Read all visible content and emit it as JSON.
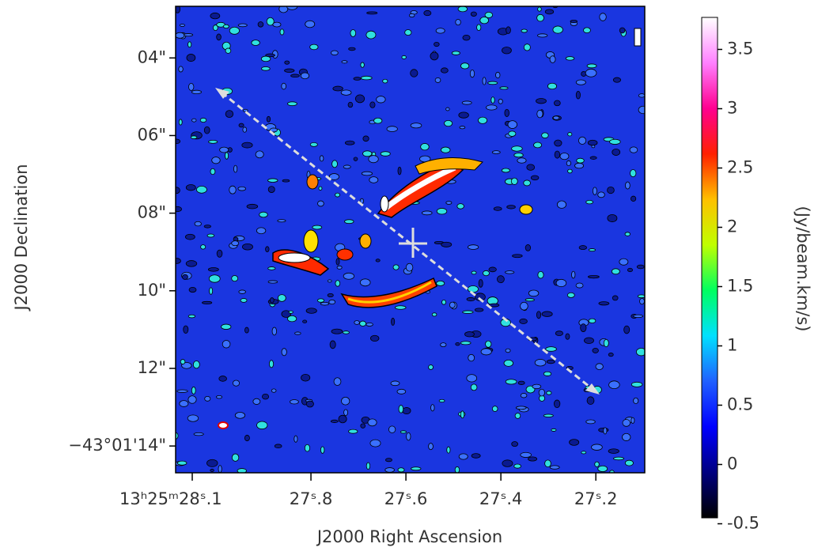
{
  "chart_data": {
    "type": "image",
    "xlabel": "J2000 Right Ascension",
    "ylabel": "J2000 Declination",
    "xlim": [
      28.085,
      27.097
    ],
    "xticks": [
      {
        "value": 28.05,
        "label": "13ʰ25ᵐ28ˢ.1"
      },
      {
        "value": 27.8,
        "label": "27ˢ.8"
      },
      {
        "value": 27.6,
        "label": "27ˢ.6"
      },
      {
        "value": 27.4,
        "label": "27ˢ.4"
      },
      {
        "value": 27.2,
        "label": "27ˢ.2"
      }
    ],
    "ylim": [
      14.69,
      2.67
    ],
    "yticks": [
      {
        "value": 4,
        "label": "04\""
      },
      {
        "value": 6,
        "label": "06\""
      },
      {
        "value": 8,
        "label": "08\""
      },
      {
        "value": 10,
        "label": "10\""
      },
      {
        "value": 12,
        "label": "12\""
      },
      {
        "value": 14,
        "label": "−43°01'14\""
      }
    ],
    "colorbar": {
      "label": "(Jy/beam.km/s)",
      "lim": [
        -0.45,
        3.77
      ],
      "ticks": [
        -0.5,
        0,
        0.5,
        1,
        1.5,
        2,
        2.5,
        3,
        3.5
      ]
    },
    "colormap": [
      "#000000",
      "#000080",
      "#0000ff",
      "#2060ff",
      "#00e0ff",
      "#00ff60",
      "#c0ff00",
      "#ffc000",
      "#ff2000",
      "#ff0090",
      "#ff80ff",
      "#ffffff"
    ]
  }
}
